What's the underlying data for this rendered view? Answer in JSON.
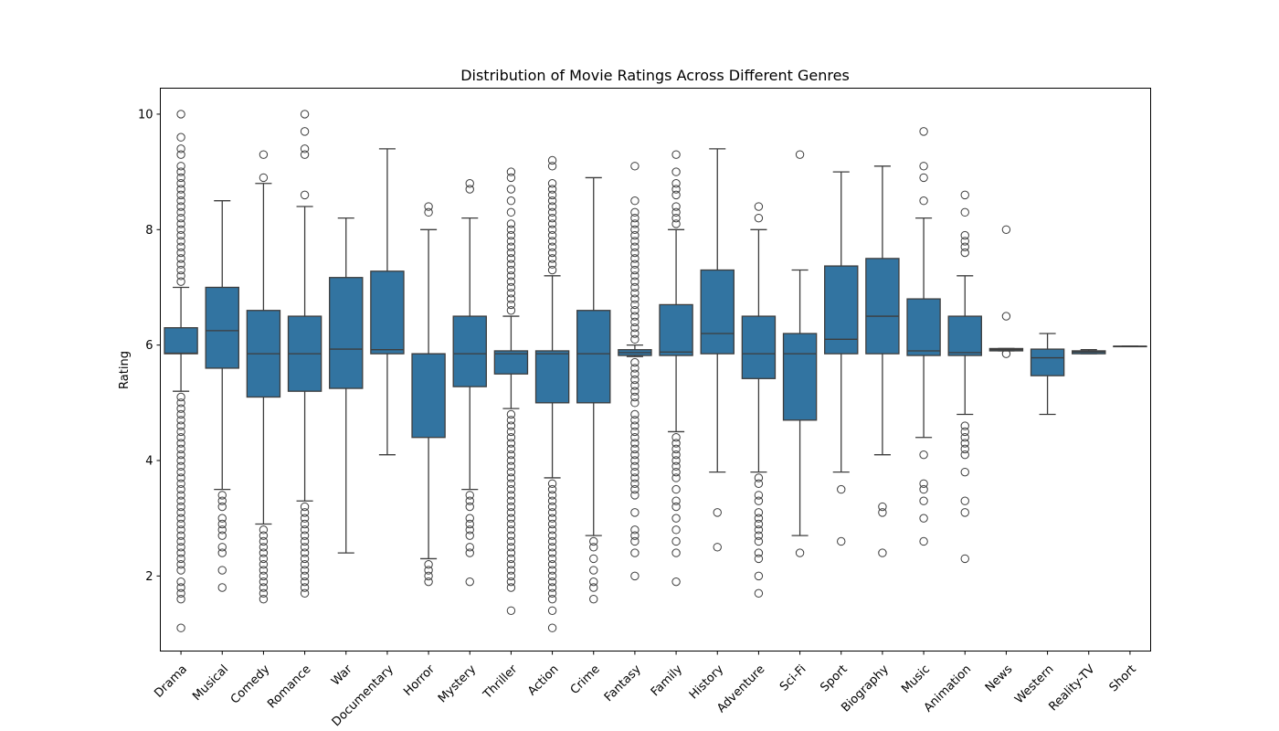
{
  "chart_data": {
    "type": "box",
    "title": "Distribution of Movie Ratings Across Different Genres",
    "xlabel": "",
    "ylabel": "Rating",
    "ylim": [
      0.7,
      10.45
    ],
    "yticks": [
      2,
      4,
      6,
      8,
      10
    ],
    "grid": false,
    "color": "#3274a1",
    "categories": [
      "Drama",
      "Musical",
      "Comedy",
      "Romance",
      "War",
      "Documentary",
      "Horror",
      "Mystery",
      "Thriller",
      "Action",
      "Crime",
      "Fantasy",
      "Family",
      "History",
      "Adventure",
      "Sci-Fi",
      "Sport",
      "Biography",
      "Music",
      "Animation",
      "News",
      "Western",
      "Reality-TV",
      "Short"
    ],
    "boxes": [
      {
        "q1": 5.85,
        "median": 5.86,
        "q3": 6.3,
        "whislo": 5.2,
        "whishi": 7.0,
        "fliers": [
          1.1,
          1.6,
          1.7,
          1.8,
          1.9,
          2.1,
          2.2,
          2.3,
          2.4,
          2.5,
          2.6,
          2.7,
          2.8,
          2.9,
          3.0,
          3.1,
          3.2,
          3.3,
          3.4,
          3.5,
          3.6,
          3.7,
          3.8,
          3.9,
          4.0,
          4.1,
          4.2,
          4.3,
          4.4,
          4.5,
          4.6,
          4.7,
          4.8,
          4.9,
          5.0,
          5.1,
          7.1,
          7.2,
          7.3,
          7.4,
          7.5,
          7.6,
          7.7,
          7.8,
          7.9,
          8.0,
          8.1,
          8.2,
          8.3,
          8.4,
          8.5,
          8.6,
          8.7,
          8.8,
          8.9,
          9.0,
          9.1,
          9.3,
          9.4,
          9.6,
          10.0
        ]
      },
      {
        "q1": 5.6,
        "median": 6.25,
        "q3": 7.0,
        "whislo": 3.5,
        "whishi": 8.5,
        "fliers": [
          1.8,
          2.1,
          2.4,
          2.5,
          2.7,
          2.8,
          2.9,
          3.0,
          3.2,
          3.3,
          3.4
        ]
      },
      {
        "q1": 5.1,
        "median": 5.85,
        "q3": 6.6,
        "whislo": 2.9,
        "whishi": 8.8,
        "fliers": [
          1.6,
          1.7,
          1.8,
          1.9,
          2.0,
          2.1,
          2.2,
          2.3,
          2.4,
          2.5,
          2.6,
          2.7,
          2.8,
          8.9,
          9.3
        ]
      },
      {
        "q1": 5.2,
        "median": 5.85,
        "q3": 6.5,
        "whislo": 3.3,
        "whishi": 8.4,
        "fliers": [
          1.7,
          1.8,
          1.9,
          2.0,
          2.1,
          2.2,
          2.3,
          2.4,
          2.5,
          2.6,
          2.7,
          2.8,
          2.9,
          3.0,
          3.1,
          3.2,
          8.6,
          9.3,
          9.4,
          9.7,
          10.0
        ]
      },
      {
        "q1": 5.25,
        "median": 5.93,
        "q3": 7.17,
        "whislo": 2.4,
        "whishi": 8.2,
        "fliers": []
      },
      {
        "q1": 5.85,
        "median": 5.92,
        "q3": 7.28,
        "whislo": 4.1,
        "whishi": 9.4,
        "fliers": []
      },
      {
        "q1": 4.4,
        "median": 5.85,
        "q3": 5.85,
        "whislo": 2.3,
        "whishi": 8.0,
        "fliers": [
          1.9,
          2.0,
          2.1,
          2.2,
          8.3,
          8.4
        ]
      },
      {
        "q1": 5.28,
        "median": 5.85,
        "q3": 6.5,
        "whislo": 3.5,
        "whishi": 8.2,
        "fliers": [
          1.9,
          2.4,
          2.5,
          2.7,
          2.8,
          2.9,
          3.0,
          3.2,
          3.3,
          3.4,
          8.7,
          8.8
        ]
      },
      {
        "q1": 5.5,
        "median": 5.85,
        "q3": 5.9,
        "whislo": 4.9,
        "whishi": 6.5,
        "fliers": [
          1.4,
          1.8,
          1.9,
          2.0,
          2.1,
          2.2,
          2.3,
          2.4,
          2.5,
          2.6,
          2.7,
          2.8,
          2.9,
          3.0,
          3.1,
          3.2,
          3.3,
          3.4,
          3.5,
          3.6,
          3.7,
          3.8,
          3.9,
          4.0,
          4.1,
          4.2,
          4.3,
          4.4,
          4.5,
          4.6,
          4.7,
          4.8,
          6.6,
          6.7,
          6.8,
          6.9,
          7.0,
          7.1,
          7.2,
          7.3,
          7.4,
          7.5,
          7.6,
          7.7,
          7.8,
          7.9,
          8.0,
          8.1,
          8.3,
          8.5,
          8.7,
          8.9,
          9.0
        ]
      },
      {
        "q1": 5.0,
        "median": 5.85,
        "q3": 5.9,
        "whislo": 3.7,
        "whishi": 7.2,
        "fliers": [
          1.1,
          1.4,
          1.6,
          1.7,
          1.8,
          1.9,
          2.0,
          2.1,
          2.2,
          2.3,
          2.4,
          2.5,
          2.6,
          2.7,
          2.8,
          2.9,
          3.0,
          3.1,
          3.2,
          3.3,
          3.4,
          3.5,
          3.6,
          7.3,
          7.4,
          7.5,
          7.6,
          7.7,
          7.8,
          7.9,
          8.0,
          8.1,
          8.2,
          8.3,
          8.4,
          8.5,
          8.6,
          8.7,
          8.8,
          9.1,
          9.2
        ]
      },
      {
        "q1": 5.0,
        "median": 5.85,
        "q3": 6.6,
        "whislo": 2.7,
        "whishi": 8.9,
        "fliers": [
          1.6,
          1.8,
          1.9,
          2.1,
          2.3,
          2.5,
          2.6
        ]
      },
      {
        "q1": 5.82,
        "median": 5.87,
        "q3": 5.92,
        "whislo": 5.8,
        "whishi": 6.0,
        "fliers": [
          2.0,
          2.4,
          2.6,
          2.7,
          2.8,
          3.1,
          3.4,
          3.5,
          3.6,
          3.7,
          3.8,
          3.9,
          4.0,
          4.1,
          4.2,
          4.3,
          4.4,
          4.5,
          4.6,
          4.7,
          4.8,
          5.0,
          5.1,
          5.2,
          5.3,
          5.4,
          5.5,
          5.6,
          5.7,
          6.1,
          6.2,
          6.3,
          6.4,
          6.5,
          6.6,
          6.7,
          6.8,
          6.9,
          7.0,
          7.1,
          7.2,
          7.3,
          7.4,
          7.5,
          7.6,
          7.7,
          7.8,
          7.9,
          8.0,
          8.1,
          8.2,
          8.3,
          8.5,
          9.1
        ]
      },
      {
        "q1": 5.82,
        "median": 5.88,
        "q3": 6.7,
        "whislo": 4.5,
        "whishi": 8.0,
        "fliers": [
          1.9,
          2.4,
          2.6,
          2.8,
          3.0,
          3.2,
          3.3,
          3.5,
          3.7,
          3.8,
          3.9,
          4.0,
          4.1,
          4.2,
          4.3,
          4.4,
          8.1,
          8.2,
          8.3,
          8.4,
          8.6,
          8.7,
          8.8,
          9.0,
          9.3
        ]
      },
      {
        "q1": 5.85,
        "median": 6.2,
        "q3": 7.3,
        "whislo": 3.8,
        "whishi": 9.4,
        "fliers": [
          2.5,
          3.1
        ]
      },
      {
        "q1": 5.42,
        "median": 5.85,
        "q3": 6.5,
        "whislo": 3.8,
        "whishi": 8.0,
        "fliers": [
          1.7,
          2.0,
          2.3,
          2.4,
          2.6,
          2.7,
          2.8,
          2.9,
          3.0,
          3.1,
          3.3,
          3.4,
          3.6,
          3.7,
          8.2,
          8.4
        ]
      },
      {
        "q1": 4.7,
        "median": 5.85,
        "q3": 6.2,
        "whislo": 2.7,
        "whishi": 7.3,
        "fliers": [
          2.4,
          9.3
        ]
      },
      {
        "q1": 5.85,
        "median": 6.1,
        "q3": 7.37,
        "whislo": 3.8,
        "whishi": 9.0,
        "fliers": [
          2.6,
          3.5
        ]
      },
      {
        "q1": 5.85,
        "median": 6.5,
        "q3": 7.5,
        "whislo": 4.1,
        "whishi": 9.1,
        "fliers": [
          2.4,
          3.1,
          3.2
        ]
      },
      {
        "q1": 5.82,
        "median": 5.9,
        "q3": 6.8,
        "whislo": 4.4,
        "whishi": 8.2,
        "fliers": [
          2.6,
          3.0,
          3.3,
          3.5,
          3.6,
          4.1,
          8.5,
          8.9,
          9.1,
          9.7
        ]
      },
      {
        "q1": 5.82,
        "median": 5.87,
        "q3": 6.5,
        "whislo": 4.8,
        "whishi": 7.2,
        "fliers": [
          2.3,
          3.1,
          3.3,
          3.8,
          4.1,
          4.2,
          4.3,
          4.4,
          4.5,
          4.6,
          7.6,
          7.7,
          7.8,
          7.9,
          8.3,
          8.6
        ]
      },
      {
        "q1": 5.9,
        "median": 5.92,
        "q3": 5.94,
        "whislo": 5.9,
        "whishi": 5.94,
        "fliers": [
          5.85,
          6.5,
          8.0
        ]
      },
      {
        "q1": 5.47,
        "median": 5.78,
        "q3": 5.93,
        "whislo": 4.8,
        "whishi": 6.2,
        "fliers": []
      },
      {
        "q1": 5.85,
        "median": 5.88,
        "q3": 5.9,
        "whislo": 5.85,
        "whishi": 5.92,
        "fliers": []
      },
      {
        "q1": 5.98,
        "median": 5.98,
        "q3": 5.98,
        "whislo": 5.98,
        "whishi": 5.98,
        "fliers": []
      }
    ]
  }
}
